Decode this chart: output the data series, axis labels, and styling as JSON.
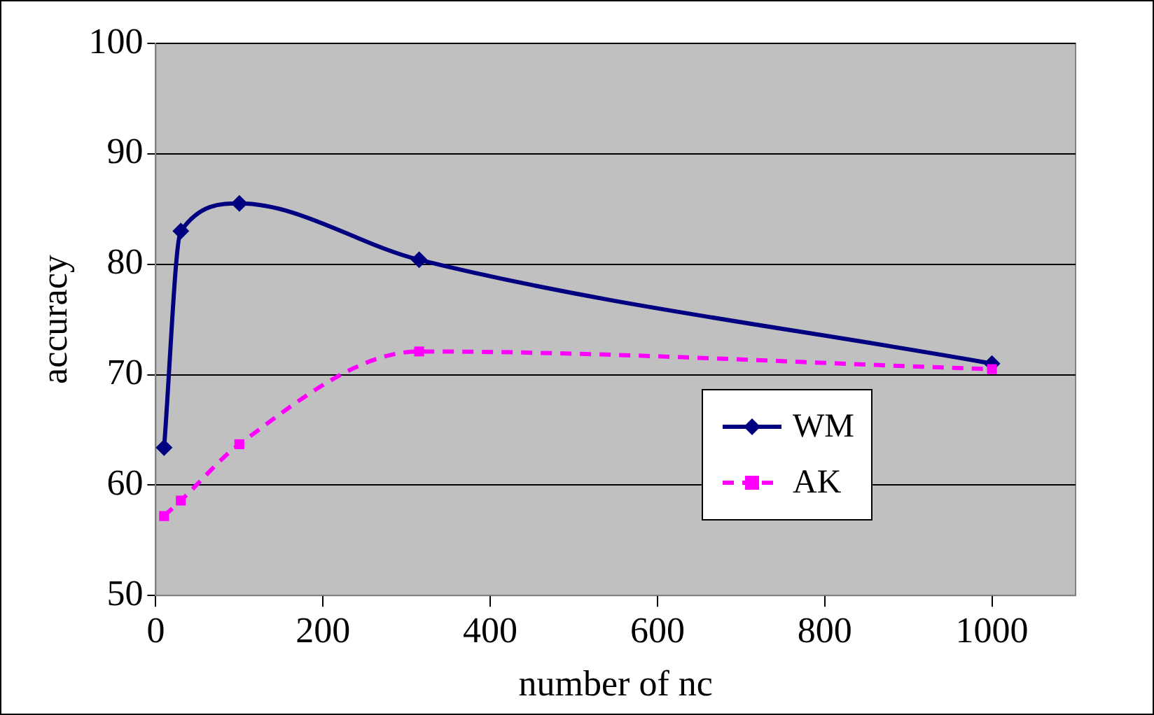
{
  "chart_data": {
    "type": "line",
    "xlabel": "number of nc",
    "ylabel": "accuracy",
    "xlim": [
      0,
      1100
    ],
    "xticks": [
      0,
      200,
      400,
      600,
      800,
      1000
    ],
    "ylim": [
      50,
      100
    ],
    "yticks": [
      50,
      60,
      70,
      80,
      90,
      100
    ],
    "grid": "y",
    "legend": "bottom right",
    "series": [
      {
        "name": "WM",
        "color": "#000080",
        "marker": "diamond",
        "line_style": "solid",
        "x": [
          10,
          30,
          100,
          315,
          1000
        ],
        "values": [
          63.4,
          83,
          85.5,
          80.4,
          71
        ]
      },
      {
        "name": "AK",
        "color": "#ff00ff",
        "marker": "square",
        "line_style": "dashed",
        "x": [
          10,
          30,
          100,
          315,
          1000
        ],
        "values": [
          57.2,
          58.6,
          63.7,
          72.1,
          70.5
        ]
      }
    ]
  }
}
